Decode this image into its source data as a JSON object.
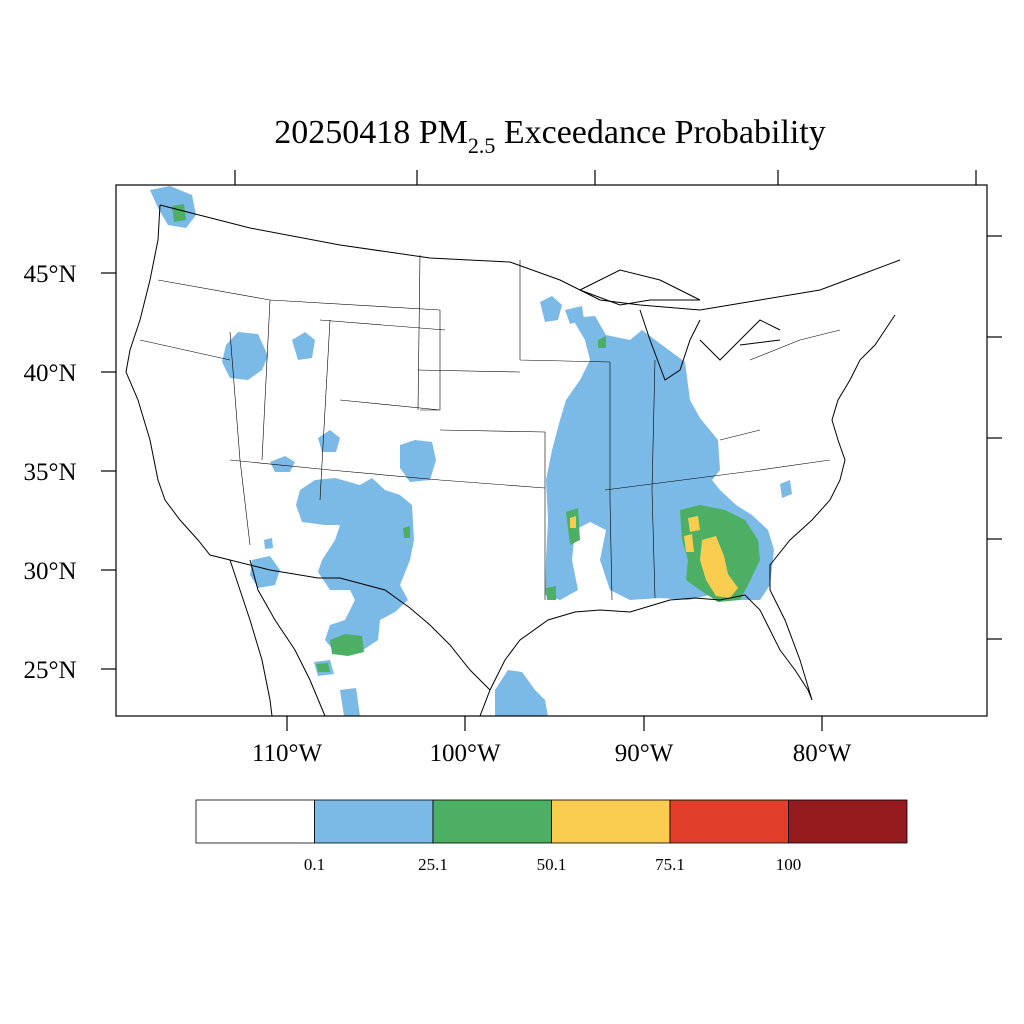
{
  "map": {
    "date": "20250418",
    "title_prefix": "PM",
    "title_subscript": "2.5",
    "title_suffix": "Exceedance Probability",
    "lat_labels": [
      "45°N",
      "40°N",
      "35°N",
      "30°N",
      "25°N"
    ],
    "lon_labels": [
      "110°W",
      "100°W",
      "90°W",
      "80°W"
    ],
    "projection": "Lambert conformal (CONUS)",
    "region": "Contiguous United States"
  },
  "legend": {
    "thresholds": [
      "0.1",
      "25.1",
      "50.1",
      "75.1",
      "100"
    ],
    "bins": [
      {
        "range": "< 0.1",
        "color": "#ffffff"
      },
      {
        "range": "0.1 - 25.1",
        "color": "#7bb9e6"
      },
      {
        "range": "25.1 - 50.1",
        "color": "#4caf63"
      },
      {
        "range": "50.1 - 75.1",
        "color": "#f8cd50"
      },
      {
        "range": "75.1 - 100",
        "color": "#e23f2a"
      },
      {
        "range": "> 100",
        "color": "#961b1e"
      }
    ]
  },
  "probability_areas": [
    {
      "region": "Mississippi Valley / Midwest to Gulf Coast",
      "category": "0.1 - 25.1"
    },
    {
      "region": "New Mexico / Arizona highlands",
      "category": "0.1 - 25.1"
    },
    {
      "region": "Southeast (Alabama / Georgia / Florida panhandle)",
      "category": "50.1 - 75.1"
    },
    {
      "region": "Southeast (Alabama / Georgia / South Carolina)",
      "category": "25.1 - 50.1"
    },
    {
      "region": "Northern Mexico (Chihuahua)",
      "category": "25.1 - 50.1"
    },
    {
      "region": "Pacific Northwest (Puget Sound)",
      "category": "25.1 - 50.1"
    },
    {
      "region": "South Texas coast",
      "category": "0.1 - 25.1"
    }
  ]
}
